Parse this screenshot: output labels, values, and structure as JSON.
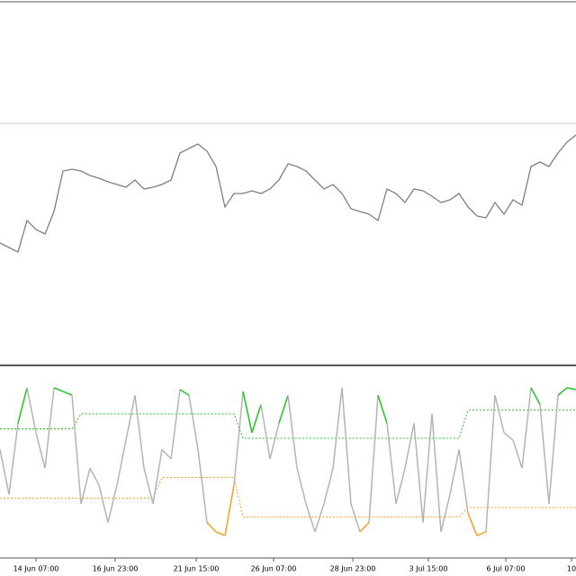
{
  "chart_data": [
    {
      "type": "line",
      "ylim": [
        0,
        100
      ],
      "xlim": [
        0,
        64
      ],
      "level": 66.75,
      "series": [
        {
          "color": "#7f7f7f",
          "values": [
            33.5,
            32.25,
            31,
            39.75,
            37.25,
            36,
            42.25,
            53.5,
            54,
            53.5,
            52.25,
            51.5,
            50.5,
            49.75,
            49,
            51,
            48.5,
            49,
            49.75,
            51,
            58.5,
            59.75,
            61,
            59,
            54.75,
            43.5,
            47.25,
            47.25,
            48,
            47.25,
            48.5,
            51,
            55.5,
            54.75,
            53.5,
            51,
            48.5,
            49.75,
            47.25,
            43,
            42.25,
            41.5,
            39.75,
            48.5,
            47.25,
            44.75,
            48.5,
            48,
            46.5,
            44.75,
            45.5,
            47.25,
            43.5,
            41,
            40.5,
            44.75,
            41.5,
            45.5,
            44,
            54.75,
            56,
            54.75,
            58.5,
            61.5,
            63.5
          ]
        }
      ]
    },
    {
      "type": "oscillator",
      "ylim": [
        0,
        100
      ],
      "xlim": [
        0,
        64
      ],
      "xticks": [
        {
          "value": 4,
          "label": "14 Jun 07:00"
        },
        {
          "value": 12.8,
          "label": "16 Jun 23:00"
        },
        {
          "value": 21.8,
          "label": "21 Jun 15:00"
        },
        {
          "value": 30.4,
          "label": "26 Jun 07:00"
        },
        {
          "value": 39.2,
          "label": "28 Jun 23:00"
        },
        {
          "value": 47.6,
          "label": "3 Jul 15:00"
        },
        {
          "value": 56.2,
          "label": "6 Jul 07:00"
        },
        {
          "value": 63.5,
          "label": "10"
        }
      ],
      "series": [
        {
          "color": "#b4b4b4",
          "values": [
            57,
            33,
            71,
            90,
            66,
            47,
            90,
            88,
            86,
            28,
            47,
            38,
            18,
            38,
            62,
            86,
            47,
            28,
            57,
            52,
            89,
            86,
            57,
            18,
            13,
            11,
            38,
            88,
            66,
            81,
            52,
            71,
            86,
            47,
            28,
            13,
            28,
            47,
            90,
            28,
            13,
            18,
            86,
            71,
            28,
            47,
            71,
            18,
            76,
            13,
            33,
            57,
            23,
            11,
            13,
            86,
            66,
            62,
            47,
            90,
            81,
            28,
            86,
            90,
            89
          ]
        },
        {
          "color": "#22c322",
          "dash": true,
          "values": [
            68,
            68,
            68,
            68,
            68,
            68,
            68,
            68,
            68,
            76,
            76,
            76,
            76,
            76,
            76,
            76,
            76,
            76,
            76,
            76,
            76,
            76,
            76,
            76,
            76,
            76,
            76,
            63,
            63,
            63,
            63,
            63,
            63,
            63,
            63,
            63,
            63,
            63,
            63,
            63,
            63,
            63,
            63,
            63,
            63,
            63,
            63,
            63,
            63,
            63,
            63,
            63,
            78,
            78,
            78,
            78,
            78,
            78,
            78,
            78,
            78,
            78,
            78,
            78,
            78
          ]
        },
        {
          "color": "#f5a020",
          "dash": true,
          "values": [
            31,
            31,
            31,
            31,
            31,
            31,
            31,
            31,
            31,
            31,
            31,
            31,
            31,
            31,
            31,
            31,
            31,
            31,
            42,
            42,
            42,
            42,
            42,
            42,
            42,
            42,
            42,
            21,
            21,
            21,
            21,
            21,
            21,
            21,
            21,
            21,
            21,
            21,
            21,
            21,
            21,
            21,
            21,
            21,
            21,
            21,
            21,
            21,
            21,
            21,
            21,
            21,
            26,
            26,
            26,
            26,
            26,
            26,
            26,
            26,
            26,
            26,
            26,
            26,
            26
          ]
        }
      ]
    }
  ]
}
